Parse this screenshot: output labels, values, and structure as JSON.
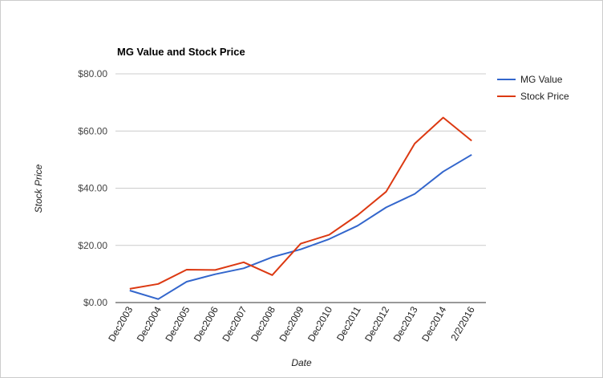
{
  "chart_data": {
    "type": "line",
    "title": "MG Value and Stock Price",
    "xlabel": "Date",
    "ylabel": "Stock Price",
    "categories": [
      "Dec2003",
      "Dec2004",
      "Dec2005",
      "Dec2006",
      "Dec2007",
      "Dec2008",
      "Dec2009",
      "Dec2010",
      "Dec2011",
      "Dec2012",
      "Dec2013",
      "Dec2014",
      "2/2/2016"
    ],
    "y_ticks": [
      "$0.00",
      "$20.00",
      "$40.00",
      "$60.00",
      "$80.00"
    ],
    "ylim": [
      0,
      80
    ],
    "grid": true,
    "legend_position": "right",
    "series": [
      {
        "name": "MG Value",
        "color": "#3366cc",
        "values": [
          4.2,
          1.2,
          7.3,
          9.9,
          12.0,
          15.9,
          18.6,
          22.2,
          26.9,
          33.3,
          38.0,
          45.8,
          51.7
        ]
      },
      {
        "name": "Stock Price",
        "color": "#dc3912",
        "values": [
          4.8,
          6.5,
          11.5,
          11.4,
          14.1,
          9.6,
          20.6,
          23.7,
          30.6,
          38.8,
          55.6,
          64.7,
          56.6
        ]
      }
    ]
  }
}
